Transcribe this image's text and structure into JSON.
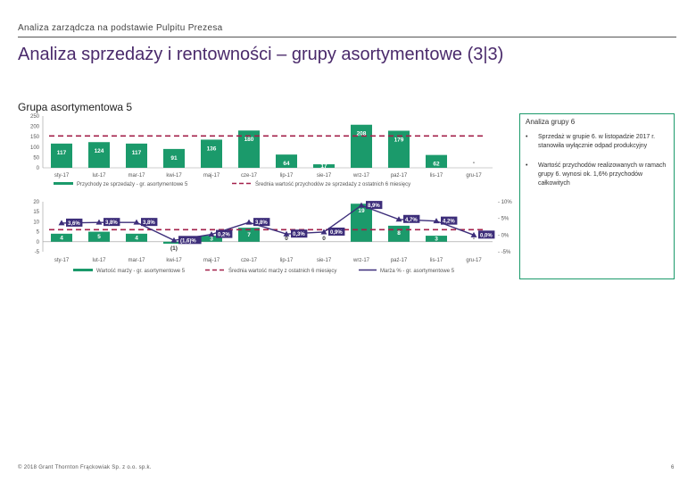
{
  "header": {
    "breadcrumb": "Analiza zarządcza na podstawie Pulpitu Prezesa",
    "title": "Analiza sprzedaży i rentowności – grupy asortymentowe (3|3)"
  },
  "group_title": "Grupa asortymentowa 5",
  "side_panel": {
    "title": "Analiza grupy 6",
    "bullets": [
      "Sprzedaż w grupie 6. w listopadzie 2017 r. stanowiła wyłącznie odpad produkcyjny",
      "Wartość przychodów realizowanych w ramach grupy 6. wynosi ok. 1,6% przychodów całkowitych"
    ]
  },
  "footer": {
    "copyright": "© 2018 Grant Thornton Frąckowiak Sp. z o.o. sp.k.",
    "page": "6"
  },
  "colors": {
    "bar": "#1b9a6b",
    "avg_line": "#a3204a",
    "margin_line": "#3d2e7a"
  },
  "chart_data": [
    {
      "type": "bar",
      "categories": [
        "sty-17",
        "lut-17",
        "mar-17",
        "kwi-17",
        "maj-17",
        "cze-17",
        "lip-17",
        "sie-17",
        "wrz-17",
        "paź-17",
        "lis-17",
        "gru-17"
      ],
      "series": [
        {
          "name": "Przychody ze sprzedaży - gr. asortymentowe 5",
          "values": [
            117,
            124,
            117,
            91,
            136,
            180,
            64,
            17,
            208,
            179,
            62,
            0
          ]
        },
        {
          "name": "Średnia wartość przychodów ze sprzedaży z ostatnich 6 miesięcy",
          "values": [
            154,
            154,
            154,
            154,
            154,
            154,
            154,
            154,
            154,
            154,
            154,
            154
          ]
        }
      ],
      "data_labels": [
        "117",
        "124",
        "117",
        "91",
        "136",
        "180",
        "64",
        "17",
        "208",
        "179",
        "62",
        "-"
      ],
      "yticks": [
        "250",
        "200",
        "150",
        "100",
        "50",
        "0"
      ],
      "ylim": [
        0,
        250
      ]
    },
    {
      "type": "bar",
      "categories": [
        "sty-17",
        "lut-17",
        "mar-17",
        "kwi-17",
        "maj-17",
        "cze-17",
        "lip-17",
        "sie-17",
        "wrz-17",
        "paź-17",
        "lis-17",
        "gru-17"
      ],
      "series": [
        {
          "name": "Wartość marży - gr. asortymentowe 5",
          "values": [
            4,
            5,
            4,
            -1,
            3,
            7,
            0,
            0,
            19,
            8,
            3,
            0
          ]
        },
        {
          "name": "Średnia wartość marży z ostatnich 6 miesięcy",
          "values": [
            6,
            6,
            6,
            6,
            6,
            6,
            6,
            6,
            6,
            6,
            6,
            6
          ]
        },
        {
          "name": "Marża % - gr. asortymentowe 5",
          "values": [
            3.6,
            3.8,
            3.8,
            -1.6,
            0.2,
            3.8,
            0.3,
            0.9,
            8.9,
            4.7,
            4.2,
            0.0
          ]
        }
      ],
      "bar_labels": [
        "4",
        "5",
        "4",
        "(1)",
        "3",
        "7",
        "0",
        "0",
        "19",
        "8",
        "3",
        "-"
      ],
      "pct_labels": [
        "3,6%",
        "3,8%",
        "3,8%",
        "(1,6)%",
        "0,2%",
        "3,8%",
        "0,3%",
        "0,9%",
        "8,9%",
        "4,7%",
        "4,2%",
        "0,0%"
      ],
      "yticks": [
        "20",
        "15",
        "10",
        "5",
        "0",
        "-5"
      ],
      "ylim": [
        -5,
        20
      ],
      "y2ticks": [
        "10%",
        "5%",
        "0%",
        "-5%"
      ],
      "y2lim": [
        -5,
        10
      ]
    }
  ]
}
